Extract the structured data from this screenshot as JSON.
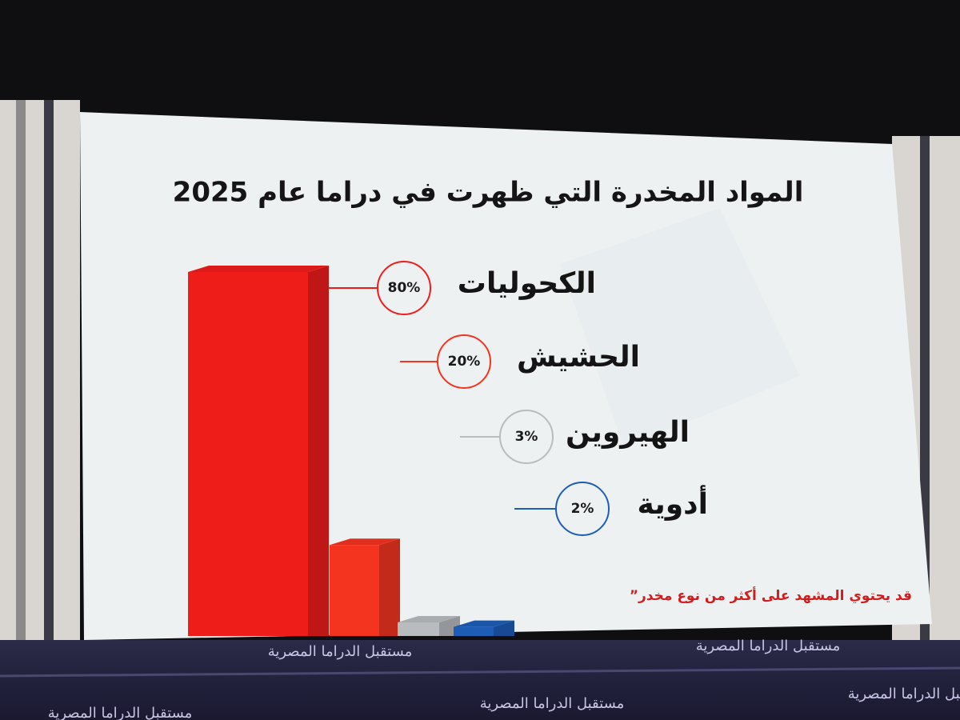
{
  "chart_data": {
    "type": "bar",
    "title": "المواد المخدرة التي ظهرت في دراما عام 2025",
    "categories": [
      "الكحوليات",
      "الحشيش",
      "الهيروين",
      "أدوية"
    ],
    "values": [
      80,
      20,
      3,
      2
    ],
    "value_labels": [
      "80%",
      "20%",
      "3%",
      "2%"
    ],
    "colors": [
      "#ef1d1a",
      "#f4341f",
      "#b9bcbf",
      "#1d5db6"
    ],
    "note": "”قد يحتوي المشهد على أكثر من نوع مخدر",
    "footer": "مستقبل الدراما المصرية"
  }
}
